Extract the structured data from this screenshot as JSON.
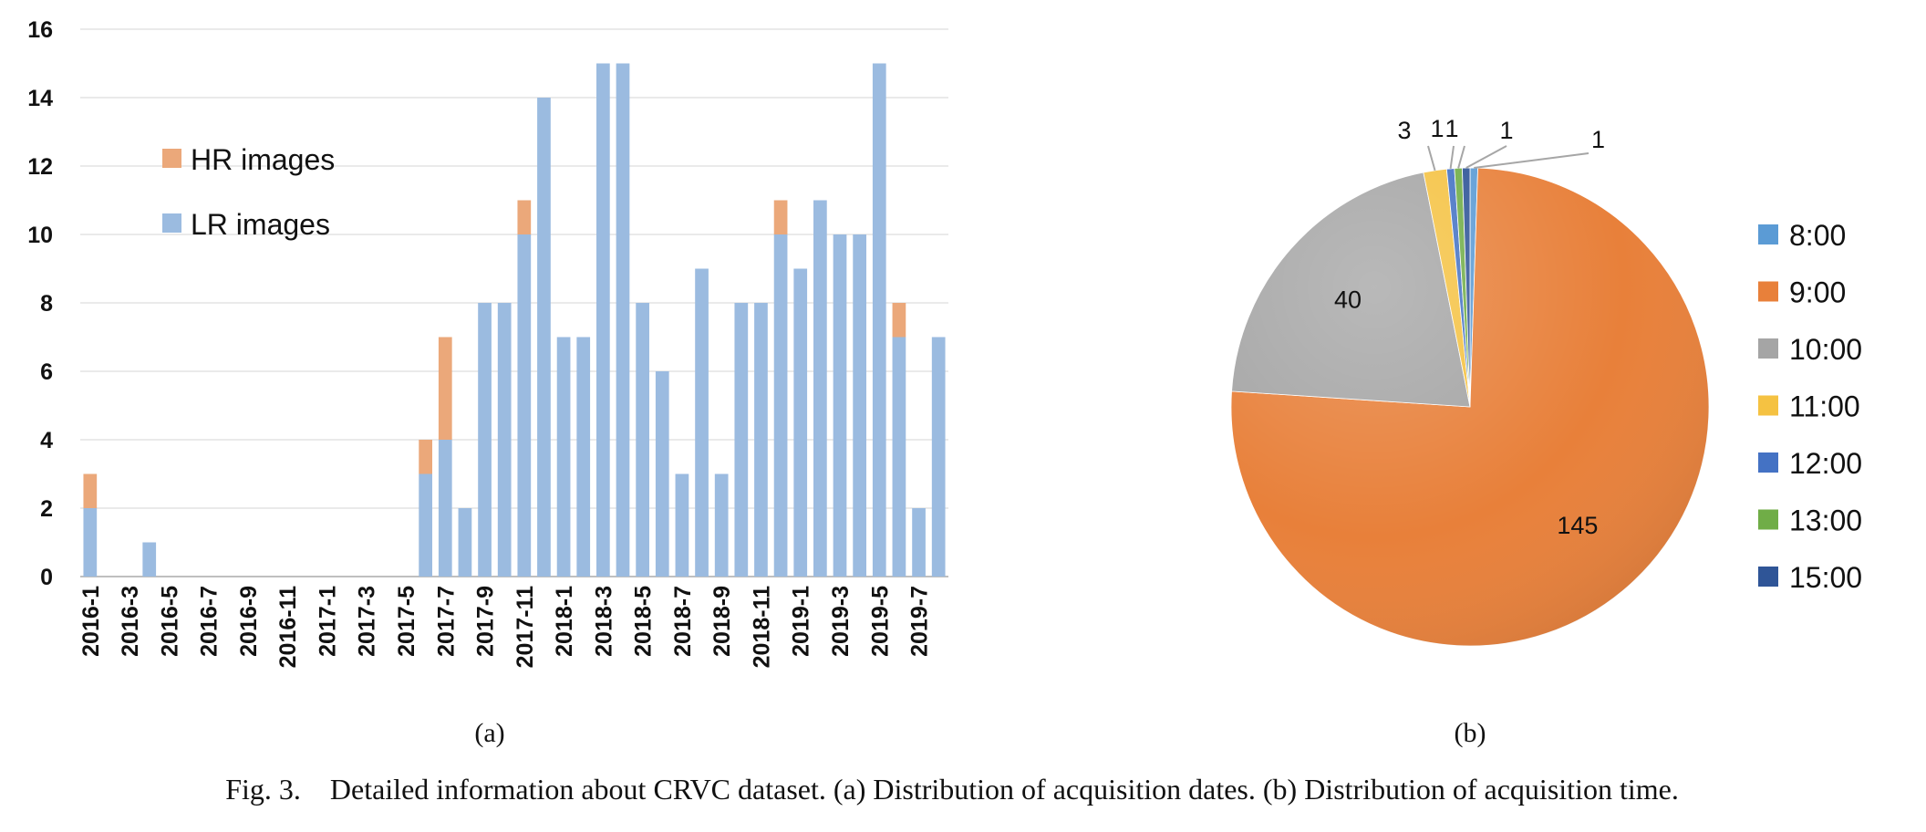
{
  "chart_data": [
    {
      "type": "bar",
      "stacked": true,
      "panel_label": "(a)",
      "categories": [
        "2016-1",
        "2016-2",
        "2016-3",
        "2016-4",
        "2016-5",
        "2016-6",
        "2016-7",
        "2016-8",
        "2016-9",
        "2016-10",
        "2016-11",
        "2016-12",
        "2017-1",
        "2017-2",
        "2017-3",
        "2017-4",
        "2017-5",
        "2017-6",
        "2017-7",
        "2017-8",
        "2017-9",
        "2017-10",
        "2017-11",
        "2017-12",
        "2018-1",
        "2018-2",
        "2018-3",
        "2018-4",
        "2018-5",
        "2018-6",
        "2018-7",
        "2018-8",
        "2018-9",
        "2018-10",
        "2018-11",
        "2018-12",
        "2019-1",
        "2019-2",
        "2019-3",
        "2019-4",
        "2019-5",
        "2019-6",
        "2019-7",
        "2019-8"
      ],
      "tick_labels": [
        "2016-1",
        "2016-3",
        "2016-5",
        "2016-7",
        "2016-9",
        "2016-11",
        "2017-1",
        "2017-3",
        "2017-5",
        "2017-7",
        "2017-9",
        "2017-11",
        "2018-1",
        "2018-3",
        "2018-5",
        "2018-7",
        "2018-9",
        "2018-11",
        "2019-1",
        "2019-3",
        "2019-5",
        "2019-7"
      ],
      "series": [
        {
          "name": "LR images",
          "color": "#9bbbe0",
          "values": [
            2,
            0,
            0,
            1,
            0,
            0,
            0,
            0,
            0,
            0,
            0,
            0,
            0,
            0,
            0,
            0,
            0,
            3,
            4,
            2,
            8,
            8,
            10,
            14,
            7,
            7,
            15,
            15,
            8,
            6,
            3,
            9,
            3,
            8,
            8,
            10,
            9,
            11,
            10,
            10,
            15,
            7,
            2,
            7
          ]
        },
        {
          "name": "HR images",
          "color": "#eba87a",
          "values": [
            1,
            0,
            0,
            0,
            0,
            0,
            0,
            0,
            0,
            0,
            0,
            0,
            0,
            0,
            0,
            0,
            0,
            1,
            3,
            0,
            0,
            0,
            1,
            0,
            0,
            0,
            0,
            0,
            0,
            0,
            0,
            0,
            0,
            0,
            0,
            1,
            0,
            0,
            0,
            0,
            0,
            1,
            0,
            0
          ]
        }
      ],
      "ylim": [
        0,
        16
      ],
      "yticks": [
        "0",
        "2",
        "4",
        "6",
        "8",
        "10",
        "12",
        "14",
        "16"
      ],
      "grid": true,
      "legend_position": "upper-left"
    },
    {
      "type": "pie",
      "panel_label": "(b)",
      "slices": [
        {
          "label": "8:00",
          "value": 1,
          "display": "1",
          "color": "#5b9bd5"
        },
        {
          "label": "9:00",
          "value": 145,
          "display": "145",
          "color": "#e8803a"
        },
        {
          "label": "10:00",
          "value": 40,
          "display": "40",
          "color": "#a5a5a5"
        },
        {
          "label": "11:00",
          "value": 3,
          "display": "3",
          "color": "#f5c242"
        },
        {
          "label": "12:00",
          "value": 1,
          "display": "1",
          "color": "#4472c4"
        },
        {
          "label": "13:00",
          "value": 1,
          "display": "1",
          "color": "#70ad47"
        },
        {
          "label": "15:00",
          "value": 1,
          "display": "1",
          "color": "#2f5597"
        }
      ],
      "legend_position": "right"
    }
  ],
  "caption": "Fig. 3.    Detailed information about CRVC dataset. (a) Distribution of acquisition dates. (b) Distribution of acquisition time."
}
